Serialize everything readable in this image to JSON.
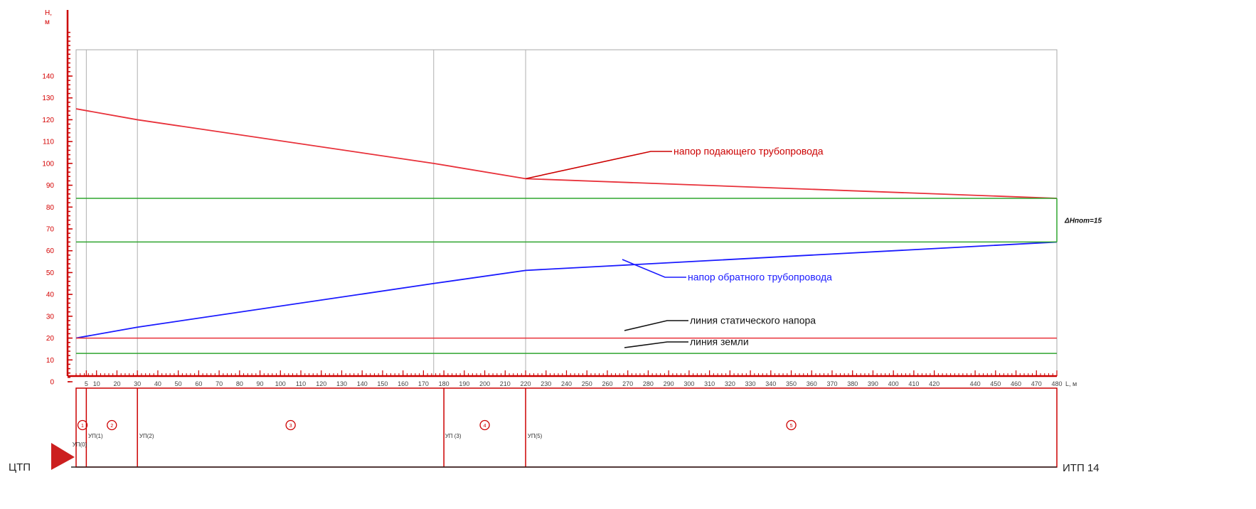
{
  "chart_data": {
    "type": "line",
    "ylabel": "Н, м",
    "xlabel": "L, м",
    "ylim": [
      0,
      140
    ],
    "xlim": [
      0,
      480
    ],
    "y_ticks": [
      0,
      10,
      20,
      30,
      40,
      50,
      60,
      70,
      80,
      90,
      100,
      110,
      120,
      130,
      140
    ],
    "x_ticks": [
      5,
      10,
      20,
      30,
      40,
      50,
      60,
      70,
      80,
      90,
      100,
      110,
      120,
      130,
      140,
      150,
      160,
      170,
      180,
      190,
      200,
      210,
      220,
      230,
      240,
      250,
      260,
      270,
      280,
      290,
      300,
      310,
      320,
      330,
      340,
      350,
      360,
      370,
      380,
      390,
      400,
      410,
      420,
      440,
      450,
      460,
      470,
      480
    ],
    "series": [
      {
        "key": "supply",
        "name": "напор подающего трубопровода",
        "color": "#e8313a",
        "x": [
          0,
          30,
          175,
          220,
          480
        ],
        "y": [
          125,
          120,
          100,
          93,
          84
        ]
      },
      {
        "key": "return",
        "name": "напор обратного трубопровода",
        "color": "#1a1aff",
        "x": [
          0,
          30,
          175,
          220,
          260,
          480
        ],
        "y": [
          20,
          25,
          45,
          51,
          53,
          64
        ]
      },
      {
        "key": "static",
        "name": "линия статического напора",
        "color": "#e8313a",
        "x": [
          0,
          480
        ],
        "y": [
          20,
          20
        ]
      },
      {
        "key": "ground",
        "name": "линия земли",
        "color": "#2fa52f",
        "x": [
          0,
          480
        ],
        "y": [
          13,
          13
        ]
      },
      {
        "key": "upper_green",
        "name": "",
        "color": "#2fa52f",
        "x": [
          0,
          480
        ],
        "y": [
          84,
          84
        ]
      },
      {
        "key": "lower_green",
        "name": "",
        "color": "#2fa52f",
        "x": [
          0,
          480
        ],
        "y": [
          64,
          64
        ]
      }
    ],
    "dh_label": "ΔHпот=15",
    "vertical_gridlines_x": [
      5,
      30,
      175,
      220
    ],
    "sections": [
      {
        "num": "1",
        "x_from": 0,
        "x_to": 5
      },
      {
        "num": "2",
        "x_from": 5,
        "x_to": 30
      },
      {
        "num": "3",
        "x_from": 30,
        "x_to": 180
      },
      {
        "num": "4",
        "x_from": 180,
        "x_to": 220
      },
      {
        "num": "5",
        "x_from": 220,
        "x_to": 480
      }
    ],
    "nodes": [
      {
        "label": "УП(0)",
        "x": 0
      },
      {
        "label": "УП(1)",
        "x": 5
      },
      {
        "label": "УП(2)",
        "x": 30
      },
      {
        "label": "УП (3)",
        "x": 180
      },
      {
        "label": "УП(5)",
        "x": 220
      }
    ],
    "start_label": "ЦТП",
    "end_label": "ИТП 14",
    "colors": {
      "axis": "#cc0000",
      "grid": "#b0b0b0",
      "frame": "#aaaaaa",
      "section": "#cc0000",
      "pointer": "#111111"
    }
  }
}
